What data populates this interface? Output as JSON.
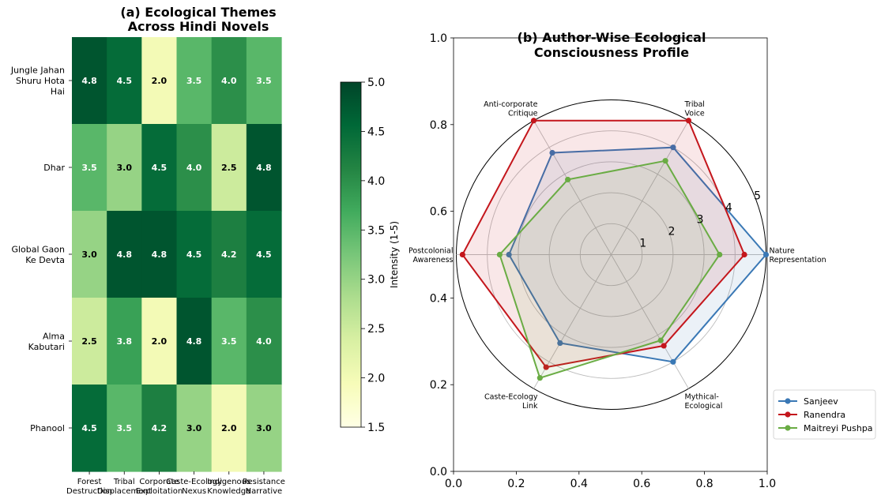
{
  "chart_data": [
    {
      "type": "heatmap",
      "title_lines": [
        "(a) Ecological Themes",
        "Across Hindi Novels"
      ],
      "rows": [
        [
          "Jungle Jahan",
          "Shuru Hota",
          "Hai"
        ],
        [
          "Dhar"
        ],
        [
          "Global Gaon",
          "Ke Devta"
        ],
        [
          "Alma",
          "Kabutari"
        ],
        [
          "Phanool"
        ]
      ],
      "columns": [
        [
          "Forest",
          "Destruction"
        ],
        [
          "Tribal",
          "Displacement"
        ],
        [
          "Corporate",
          "Exploitation"
        ],
        [
          "Caste-Ecology",
          "Nexus"
        ],
        [
          "Indigenous",
          "Knowledge"
        ],
        [
          "Resistance",
          "Narrative"
        ]
      ],
      "values": [
        [
          4.8,
          4.5,
          2.0,
          3.5,
          4.0,
          3.5
        ],
        [
          3.5,
          3.0,
          4.5,
          4.0,
          2.5,
          4.8
        ],
        [
          3.0,
          4.8,
          4.8,
          4.5,
          4.2,
          4.5
        ],
        [
          2.5,
          3.8,
          2.0,
          4.8,
          3.5,
          4.0
        ],
        [
          4.5,
          3.5,
          4.2,
          3.0,
          2.0,
          3.0
        ]
      ],
      "cell_labels": [
        [
          "4.8",
          "4.5",
          "2.0",
          "3.5",
          "4.0",
          "3.5"
        ],
        [
          "3.5",
          "3.0",
          "4.5",
          "4.0",
          "2.5",
          "4.8"
        ],
        [
          "3.0",
          "4.8",
          "4.8",
          "4.5",
          "4.2",
          "4.5"
        ],
        [
          "2.5",
          "3.8",
          "2.0",
          "4.8",
          "3.5",
          "4.0"
        ],
        [
          "4.5",
          "3.5",
          "4.2",
          "3.0",
          "2.0",
          "3.0"
        ]
      ],
      "colorbar": {
        "label": "Intensity (1-5)",
        "range": [
          1.5,
          5.0
        ],
        "ticks": [
          "1.5",
          "2.0",
          "2.5",
          "3.0",
          "3.5",
          "4.0",
          "4.5",
          "5.0"
        ],
        "colormap": [
          "#ffffe5",
          "#f7fcb9",
          "#d9f0a3",
          "#addd8e",
          "#78c679",
          "#41ab5d",
          "#238443",
          "#006837",
          "#004529"
        ]
      }
    },
    {
      "type": "radar",
      "title_lines": [
        "(b) Author-Wise Ecological",
        "Consciousness Profile"
      ],
      "axes": [
        [
          "Nature",
          "Representation"
        ],
        [
          "Tribal",
          "Voice"
        ],
        [
          "Anti-corporate",
          "Critique"
        ],
        [
          "Postcolonial",
          "Awareness"
        ],
        [
          "Caste-Ecology",
          "Link"
        ],
        [
          "Mythical-",
          "Ecological"
        ]
      ],
      "radial_range": [
        0,
        5
      ],
      "radial_ticks": [
        "1",
        "2",
        "3",
        "4",
        "5"
      ],
      "frame_ticks": [
        "0.0",
        "0.2",
        "0.4",
        "0.6",
        "0.8",
        "1.0"
      ],
      "series": [
        {
          "name": "Sanjeev",
          "color": "#3a78b5",
          "values": [
            5.0,
            4.0,
            3.8,
            3.3,
            3.3,
            4.0
          ]
        },
        {
          "name": "Ranendra",
          "color": "#c4161c",
          "values": [
            4.3,
            5.0,
            5.0,
            4.8,
            4.2,
            3.4
          ]
        },
        {
          "name": "Maitreyi Pushpa",
          "color": "#6aac44",
          "values": [
            3.5,
            3.5,
            2.8,
            3.6,
            4.6,
            3.2
          ]
        }
      ],
      "legend_position": "lower-right",
      "grid": true
    }
  ]
}
